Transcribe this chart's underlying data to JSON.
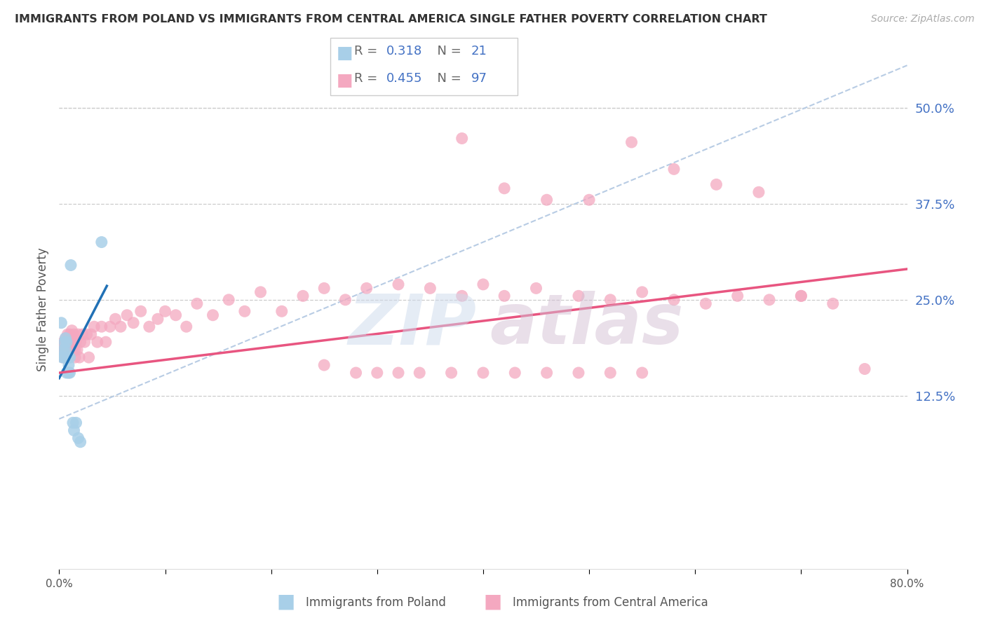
{
  "title": "IMMIGRANTS FROM POLAND VS IMMIGRANTS FROM CENTRAL AMERICA SINGLE FATHER POVERTY CORRELATION CHART",
  "source": "Source: ZipAtlas.com",
  "ylabel": "Single Father Poverty",
  "right_yticks": [
    0.125,
    0.25,
    0.375,
    0.5
  ],
  "right_yticklabels": [
    "12.5%",
    "25.0%",
    "37.5%",
    "50.0%"
  ],
  "xlim": [
    0.0,
    0.8
  ],
  "ylim": [
    -0.1,
    0.575
  ],
  "poland_scatter_color": "#a8cfe8",
  "ca_scatter_color": "#f4a8c0",
  "poland_line_color": "#2171b5",
  "ca_line_color": "#e85580",
  "ref_line_color": "#b8cce4",
  "background_color": "#ffffff",
  "grid_color": "#cccccc",
  "right_axis_color": "#4472c4",
  "legend_r_n_color": "#4472c4",
  "bottom_legend_color": "#555555",
  "poland_x": [
    0.002,
    0.003,
    0.004,
    0.005,
    0.005,
    0.006,
    0.006,
    0.007,
    0.007,
    0.008,
    0.009,
    0.009,
    0.01,
    0.01,
    0.011,
    0.013,
    0.014,
    0.016,
    0.018,
    0.02,
    0.04
  ],
  "poland_y": [
    0.22,
    0.175,
    0.185,
    0.195,
    0.175,
    0.2,
    0.185,
    0.155,
    0.195,
    0.175,
    0.165,
    0.155,
    0.175,
    0.155,
    0.295,
    0.09,
    0.08,
    0.09,
    0.07,
    0.065,
    0.325
  ],
  "ca_x": [
    0.002,
    0.003,
    0.004,
    0.004,
    0.005,
    0.005,
    0.006,
    0.006,
    0.007,
    0.007,
    0.008,
    0.008,
    0.009,
    0.009,
    0.01,
    0.01,
    0.011,
    0.011,
    0.012,
    0.012,
    0.013,
    0.013,
    0.014,
    0.015,
    0.015,
    0.016,
    0.017,
    0.018,
    0.019,
    0.02,
    0.022,
    0.024,
    0.026,
    0.028,
    0.03,
    0.033,
    0.036,
    0.04,
    0.044,
    0.048,
    0.053,
    0.058,
    0.064,
    0.07,
    0.077,
    0.085,
    0.093,
    0.1,
    0.11,
    0.12,
    0.13,
    0.145,
    0.16,
    0.175,
    0.19,
    0.21,
    0.23,
    0.25,
    0.27,
    0.29,
    0.32,
    0.35,
    0.38,
    0.4,
    0.42,
    0.45,
    0.49,
    0.52,
    0.55,
    0.58,
    0.61,
    0.64,
    0.67,
    0.7,
    0.73,
    0.76,
    0.38,
    0.42,
    0.46,
    0.5,
    0.54,
    0.58,
    0.62,
    0.66,
    0.7,
    0.25,
    0.28,
    0.3,
    0.32,
    0.34,
    0.37,
    0.4,
    0.43,
    0.46,
    0.49,
    0.52,
    0.55
  ],
  "ca_y": [
    0.19,
    0.18,
    0.195,
    0.175,
    0.185,
    0.175,
    0.2,
    0.185,
    0.195,
    0.175,
    0.205,
    0.185,
    0.195,
    0.175,
    0.205,
    0.185,
    0.2,
    0.18,
    0.21,
    0.185,
    0.2,
    0.185,
    0.205,
    0.185,
    0.175,
    0.195,
    0.185,
    0.205,
    0.175,
    0.195,
    0.205,
    0.195,
    0.205,
    0.175,
    0.205,
    0.215,
    0.195,
    0.215,
    0.195,
    0.215,
    0.225,
    0.215,
    0.23,
    0.22,
    0.235,
    0.215,
    0.225,
    0.235,
    0.23,
    0.215,
    0.245,
    0.23,
    0.25,
    0.235,
    0.26,
    0.235,
    0.255,
    0.265,
    0.25,
    0.265,
    0.27,
    0.265,
    0.255,
    0.27,
    0.255,
    0.265,
    0.255,
    0.25,
    0.26,
    0.25,
    0.245,
    0.255,
    0.25,
    0.255,
    0.245,
    0.16,
    0.46,
    0.395,
    0.38,
    0.38,
    0.455,
    0.42,
    0.4,
    0.39,
    0.255,
    0.165,
    0.155,
    0.155,
    0.155,
    0.155,
    0.155,
    0.155,
    0.155,
    0.155,
    0.155,
    0.155,
    0.155
  ],
  "ref_line_x": [
    0.0,
    0.8
  ],
  "ref_line_y": [
    0.095,
    0.555
  ],
  "poland_line_x": [
    0.0,
    0.045
  ],
  "poland_line_start_y": 0.148,
  "poland_line_end_y": 0.268,
  "ca_line_start_y": 0.155,
  "ca_line_end_y": 0.29
}
